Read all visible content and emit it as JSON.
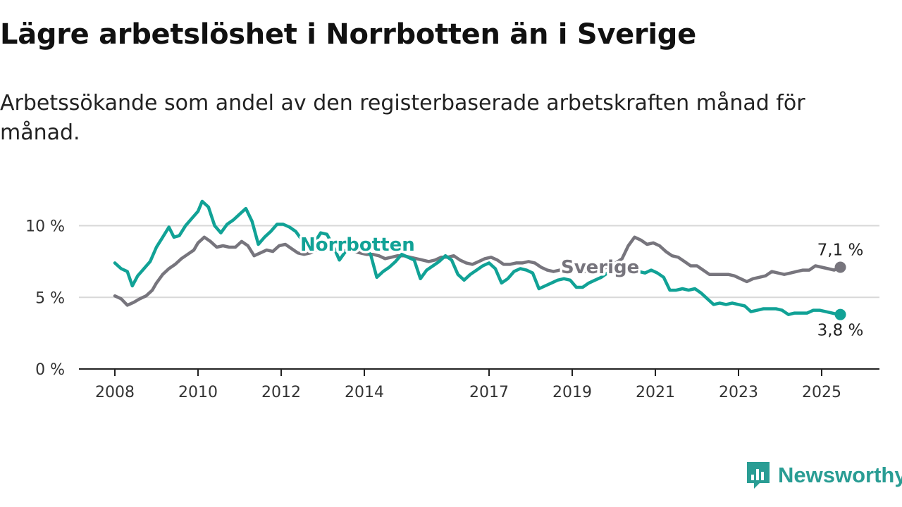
{
  "title": "Lägre arbetslöshet i Norrbotten än i Sverige",
  "subtitle": "Arbetssökande som andel av den registerbaserade arbetskraften månad för månad.",
  "brand": {
    "name": "Newsworthy",
    "icon": "newsworthy-logo-icon",
    "color": "#2a9d94"
  },
  "chart_data": {
    "type": "line",
    "ylim": [
      0,
      12
    ],
    "xlim": [
      2008,
      2026.4
    ],
    "y_ticks": [
      {
        "value": 0,
        "label": "0 %"
      },
      {
        "value": 5,
        "label": "5 %"
      },
      {
        "value": 10,
        "label": "10 %"
      }
    ],
    "x_ticks": [
      {
        "value": 2008,
        "label": "2008"
      },
      {
        "value": 2010,
        "label": "2010"
      },
      {
        "value": 2012,
        "label": "2012"
      },
      {
        "value": 2014,
        "label": "2014"
      },
      {
        "value": 2017,
        "label": "2017"
      },
      {
        "value": 2019,
        "label": "2019"
      },
      {
        "value": 2021,
        "label": "2021"
      },
      {
        "value": 2023,
        "label": "2023"
      },
      {
        "value": 2025,
        "label": "2025"
      }
    ],
    "grid": true,
    "series": [
      {
        "name": "Sverige",
        "color": "#77757d",
        "end_label": "7,1 %",
        "points": [
          [
            2008.0,
            5.1
          ],
          [
            2008.15,
            4.9
          ],
          [
            2008.3,
            4.45
          ],
          [
            2008.45,
            4.65
          ],
          [
            2008.6,
            4.9
          ],
          [
            2008.75,
            5.1
          ],
          [
            2008.9,
            5.5
          ],
          [
            2009.0,
            6.0
          ],
          [
            2009.15,
            6.6
          ],
          [
            2009.3,
            7.0
          ],
          [
            2009.45,
            7.3
          ],
          [
            2009.6,
            7.7
          ],
          [
            2009.75,
            8.0
          ],
          [
            2009.9,
            8.3
          ],
          [
            2010.0,
            8.8
          ],
          [
            2010.15,
            9.2
          ],
          [
            2010.3,
            8.9
          ],
          [
            2010.45,
            8.5
          ],
          [
            2010.6,
            8.6
          ],
          [
            2010.75,
            8.5
          ],
          [
            2010.9,
            8.5
          ],
          [
            2011.05,
            8.9
          ],
          [
            2011.2,
            8.6
          ],
          [
            2011.35,
            7.9
          ],
          [
            2011.5,
            8.1
          ],
          [
            2011.65,
            8.3
          ],
          [
            2011.8,
            8.2
          ],
          [
            2011.95,
            8.6
          ],
          [
            2012.1,
            8.7
          ],
          [
            2012.25,
            8.4
          ],
          [
            2012.4,
            8.1
          ],
          [
            2012.55,
            8.0
          ],
          [
            2012.7,
            8.1
          ],
          [
            2012.85,
            8.3
          ],
          [
            2013.0,
            8.5
          ],
          [
            2013.15,
            8.4
          ],
          [
            2013.3,
            8.2
          ],
          [
            2013.45,
            8.2
          ],
          [
            2013.6,
            8.3
          ],
          [
            2013.75,
            8.2
          ],
          [
            2013.9,
            8.1
          ],
          [
            2014.05,
            8.0
          ],
          [
            2014.2,
            8.0
          ],
          [
            2014.35,
            7.9
          ],
          [
            2014.5,
            7.7
          ],
          [
            2014.65,
            7.8
          ],
          [
            2014.8,
            7.9
          ],
          [
            2014.95,
            7.9
          ],
          [
            2015.1,
            7.8
          ],
          [
            2015.25,
            7.7
          ],
          [
            2015.4,
            7.6
          ],
          [
            2015.55,
            7.5
          ],
          [
            2015.7,
            7.6
          ],
          [
            2015.85,
            7.8
          ],
          [
            2016.0,
            7.8
          ],
          [
            2016.15,
            7.9
          ],
          [
            2016.3,
            7.6
          ],
          [
            2016.45,
            7.4
          ],
          [
            2016.6,
            7.3
          ],
          [
            2016.75,
            7.5
          ],
          [
            2016.9,
            7.7
          ],
          [
            2017.05,
            7.8
          ],
          [
            2017.2,
            7.6
          ],
          [
            2017.35,
            7.3
          ],
          [
            2017.5,
            7.3
          ],
          [
            2017.65,
            7.4
          ],
          [
            2017.8,
            7.4
          ],
          [
            2017.95,
            7.5
          ],
          [
            2018.1,
            7.4
          ],
          [
            2018.25,
            7.1
          ],
          [
            2018.4,
            6.9
          ],
          [
            2018.55,
            6.8
          ],
          [
            2018.7,
            6.9
          ],
          [
            2018.85,
            6.9
          ],
          [
            2019.0,
            7.0
          ],
          [
            2019.15,
            6.9
          ],
          [
            2019.3,
            6.8
          ],
          [
            2019.45,
            6.9
          ],
          [
            2019.6,
            7.0
          ],
          [
            2019.75,
            7.0
          ],
          [
            2019.9,
            7.2
          ],
          [
            2020.05,
            7.4
          ],
          [
            2020.2,
            7.7
          ],
          [
            2020.35,
            8.6
          ],
          [
            2020.5,
            9.2
          ],
          [
            2020.65,
            9.0
          ],
          [
            2020.8,
            8.7
          ],
          [
            2020.95,
            8.8
          ],
          [
            2021.1,
            8.6
          ],
          [
            2021.25,
            8.2
          ],
          [
            2021.4,
            7.9
          ],
          [
            2021.55,
            7.8
          ],
          [
            2021.7,
            7.5
          ],
          [
            2021.85,
            7.2
          ],
          [
            2022.0,
            7.2
          ],
          [
            2022.15,
            6.9
          ],
          [
            2022.3,
            6.6
          ],
          [
            2022.45,
            6.6
          ],
          [
            2022.6,
            6.6
          ],
          [
            2022.75,
            6.6
          ],
          [
            2022.9,
            6.5
          ],
          [
            2023.05,
            6.3
          ],
          [
            2023.2,
            6.1
          ],
          [
            2023.35,
            6.3
          ],
          [
            2023.5,
            6.4
          ],
          [
            2023.65,
            6.5
          ],
          [
            2023.8,
            6.8
          ],
          [
            2023.95,
            6.7
          ],
          [
            2024.1,
            6.6
          ],
          [
            2024.25,
            6.7
          ],
          [
            2024.4,
            6.8
          ],
          [
            2024.55,
            6.9
          ],
          [
            2024.7,
            6.9
          ],
          [
            2024.85,
            7.2
          ],
          [
            2025.0,
            7.1
          ],
          [
            2025.15,
            7.0
          ],
          [
            2025.3,
            6.9
          ],
          [
            2025.45,
            7.1
          ]
        ]
      },
      {
        "name": "Norrbotten",
        "color": "#11a296",
        "end_label": "3,8 %",
        "points": [
          [
            2008.0,
            7.4
          ],
          [
            2008.15,
            7.0
          ],
          [
            2008.3,
            6.8
          ],
          [
            2008.42,
            5.8
          ],
          [
            2008.55,
            6.5
          ],
          [
            2008.7,
            7.0
          ],
          [
            2008.85,
            7.5
          ],
          [
            2009.0,
            8.5
          ],
          [
            2009.15,
            9.2
          ],
          [
            2009.3,
            9.9
          ],
          [
            2009.42,
            9.2
          ],
          [
            2009.55,
            9.3
          ],
          [
            2009.7,
            10.0
          ],
          [
            2009.85,
            10.5
          ],
          [
            2010.0,
            11.0
          ],
          [
            2010.1,
            11.7
          ],
          [
            2010.25,
            11.3
          ],
          [
            2010.4,
            10.0
          ],
          [
            2010.55,
            9.5
          ],
          [
            2010.7,
            10.1
          ],
          [
            2010.85,
            10.4
          ],
          [
            2011.0,
            10.8
          ],
          [
            2011.15,
            11.2
          ],
          [
            2011.3,
            10.3
          ],
          [
            2011.45,
            8.7
          ],
          [
            2011.6,
            9.2
          ],
          [
            2011.75,
            9.6
          ],
          [
            2011.9,
            10.1
          ],
          [
            2012.05,
            10.1
          ],
          [
            2012.2,
            9.9
          ],
          [
            2012.35,
            9.6
          ],
          [
            2012.5,
            9.0
          ],
          [
            2012.65,
            8.6
          ],
          [
            2012.8,
            8.8
          ],
          [
            2012.95,
            9.5
          ],
          [
            2013.1,
            9.4
          ],
          [
            2013.25,
            8.6
          ],
          [
            2013.4,
            7.6
          ],
          [
            2013.55,
            8.2
          ],
          [
            2013.7,
            8.3
          ],
          [
            2013.85,
            8.5
          ],
          [
            2014.0,
            8.4
          ],
          [
            2014.15,
            8.0
          ],
          [
            2014.3,
            6.4
          ],
          [
            2014.45,
            6.8
          ],
          [
            2014.6,
            7.1
          ],
          [
            2014.75,
            7.5
          ],
          [
            2014.9,
            8.0
          ],
          [
            2015.05,
            7.8
          ],
          [
            2015.2,
            7.6
          ],
          [
            2015.35,
            6.3
          ],
          [
            2015.5,
            6.9
          ],
          [
            2015.65,
            7.2
          ],
          [
            2015.8,
            7.5
          ],
          [
            2015.95,
            7.9
          ],
          [
            2016.1,
            7.6
          ],
          [
            2016.25,
            6.6
          ],
          [
            2016.4,
            6.2
          ],
          [
            2016.55,
            6.6
          ],
          [
            2016.7,
            6.9
          ],
          [
            2016.85,
            7.2
          ],
          [
            2017.0,
            7.4
          ],
          [
            2017.15,
            7.0
          ],
          [
            2017.3,
            6.0
          ],
          [
            2017.45,
            6.3
          ],
          [
            2017.6,
            6.8
          ],
          [
            2017.75,
            7.0
          ],
          [
            2017.9,
            6.9
          ],
          [
            2018.05,
            6.7
          ],
          [
            2018.2,
            5.6
          ],
          [
            2018.35,
            5.8
          ],
          [
            2018.5,
            6.0
          ],
          [
            2018.65,
            6.2
          ],
          [
            2018.8,
            6.3
          ],
          [
            2018.95,
            6.2
          ],
          [
            2019.1,
            5.7
          ],
          [
            2019.25,
            5.7
          ],
          [
            2019.4,
            6.0
          ],
          [
            2019.55,
            6.2
          ],
          [
            2019.7,
            6.4
          ],
          [
            2019.85,
            6.7
          ],
          [
            2020.0,
            6.9
          ],
          [
            2020.15,
            7.0
          ],
          [
            2020.3,
            7.0
          ],
          [
            2020.45,
            6.9
          ],
          [
            2020.6,
            6.8
          ],
          [
            2020.75,
            6.7
          ],
          [
            2020.9,
            6.9
          ],
          [
            2021.05,
            6.7
          ],
          [
            2021.2,
            6.4
          ],
          [
            2021.35,
            5.5
          ],
          [
            2021.5,
            5.5
          ],
          [
            2021.65,
            5.6
          ],
          [
            2021.8,
            5.5
          ],
          [
            2021.95,
            5.6
          ],
          [
            2022.1,
            5.3
          ],
          [
            2022.25,
            4.9
          ],
          [
            2022.4,
            4.5
          ],
          [
            2022.55,
            4.6
          ],
          [
            2022.7,
            4.5
          ],
          [
            2022.85,
            4.6
          ],
          [
            2023.0,
            4.5
          ],
          [
            2023.15,
            4.4
          ],
          [
            2023.3,
            4.0
          ],
          [
            2023.45,
            4.1
          ],
          [
            2023.6,
            4.2
          ],
          [
            2023.75,
            4.2
          ],
          [
            2023.9,
            4.2
          ],
          [
            2024.05,
            4.1
          ],
          [
            2024.2,
            3.8
          ],
          [
            2024.35,
            3.9
          ],
          [
            2024.5,
            3.9
          ],
          [
            2024.65,
            3.9
          ],
          [
            2024.8,
            4.1
          ],
          [
            2024.95,
            4.1
          ],
          [
            2025.1,
            4.0
          ],
          [
            2025.25,
            3.9
          ],
          [
            2025.4,
            3.8
          ],
          [
            2025.45,
            3.8
          ]
        ]
      }
    ]
  }
}
